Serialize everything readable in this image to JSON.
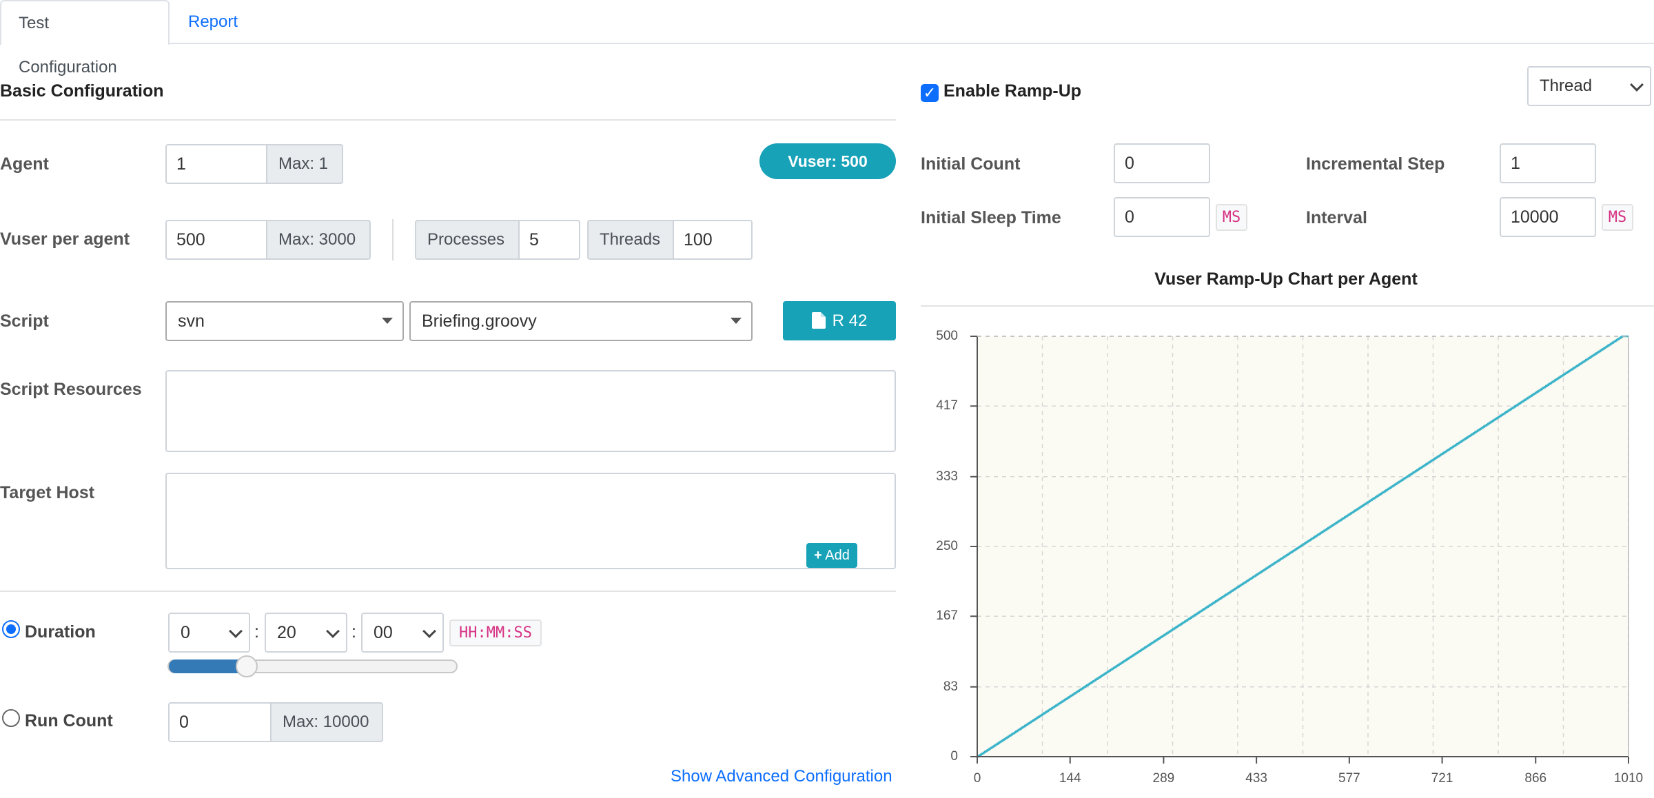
{
  "tabs": [
    {
      "label": "Test Configuration"
    },
    {
      "label": "Report"
    }
  ],
  "basic": {
    "title": "Basic Configuration",
    "agent": {
      "label": "Agent",
      "value": "1",
      "max": "Max: 1"
    },
    "vuser_badge": "Vuser: 500",
    "vuser_per_agent": {
      "label": "Vuser per agent",
      "value": "500",
      "max": "Max: 3000",
      "processes_label": "Processes",
      "processes_value": "5",
      "threads_label": "Threads",
      "threads_value": "100"
    },
    "script": {
      "label": "Script",
      "repo": "svn",
      "file": "Briefing.groovy",
      "revision_button": "R 42"
    },
    "script_resources": {
      "label": "Script Resources"
    },
    "target_host": {
      "label": "Target Host",
      "add_button": "Add"
    },
    "duration": {
      "label": "Duration",
      "hours": "0",
      "minutes": "20",
      "seconds": "00",
      "format": "HH:MM:SS",
      "slider_fraction": 0.27
    },
    "run_count": {
      "label": "Run Count",
      "value": "0",
      "max": "Max: 10000"
    },
    "advanced_link": "Show Advanced Configuration"
  },
  "rampup": {
    "enable_label": "Enable Ramp-Up",
    "enabled": true,
    "type_select": "Thread",
    "initial_count": {
      "label": "Initial Count",
      "value": "0"
    },
    "incremental_step": {
      "label": "Incremental Step",
      "value": "1"
    },
    "initial_sleep_time": {
      "label": "Initial Sleep Time",
      "value": "0",
      "unit": "MS"
    },
    "interval": {
      "label": "Interval",
      "value": "10000",
      "unit": "MS"
    }
  },
  "colors": {
    "accent": "#17a2b8",
    "link": "#0d6efd",
    "code": "#d63384",
    "chart_line": "#3ab3c9",
    "chart_bg": "#fcfbf3"
  },
  "chart_data": {
    "type": "line",
    "title": "Vuser Ramp-Up Chart per Agent",
    "xlabel": "",
    "ylabel": "",
    "x_ticks": [
      "0",
      "144",
      "289",
      "433",
      "577",
      "721",
      "866",
      "1010"
    ],
    "y_ticks": [
      "0",
      "83",
      "167",
      "250",
      "333",
      "417",
      "500"
    ],
    "xlim": [
      0,
      1010
    ],
    "ylim": [
      0,
      500
    ],
    "grid": true,
    "series": [
      {
        "values_step": "vusers increase by 1 every 2 x-units",
        "x": [
          0,
          1000,
          1010
        ],
        "y": [
          0,
          500,
          500
        ]
      }
    ]
  }
}
